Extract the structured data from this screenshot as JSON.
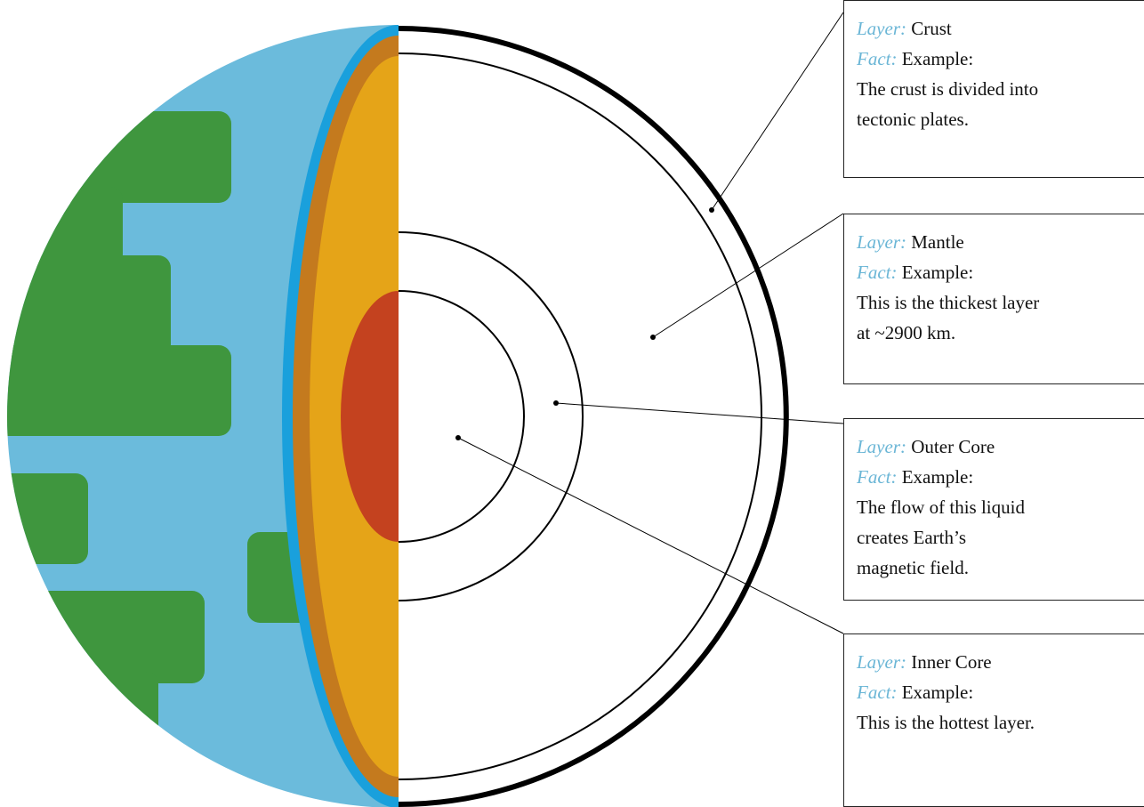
{
  "layers": [
    {
      "layer_label": "Layer:",
      "name": "Crust",
      "fact_label": "Fact:",
      "fact_intro": "Example:",
      "fact_lines": [
        "The crust is divided into",
        "tectonic plates."
      ]
    },
    {
      "layer_label": "Layer:",
      "name": "Mantle",
      "fact_label": "Fact:",
      "fact_intro": "Example:",
      "fact_lines": [
        "This is the thickest layer",
        "at ~2900 km."
      ]
    },
    {
      "layer_label": "Layer:",
      "name": "Outer Core",
      "fact_label": "Fact:",
      "fact_intro": "Example:",
      "fact_lines": [
        "The flow of this liquid",
        "creates Earth’s",
        "magnetic field."
      ]
    },
    {
      "layer_label": "Layer:",
      "name": "Inner Core",
      "fact_label": "Fact:",
      "fact_intro": "Example:",
      "fact_lines": [
        "This is the hottest layer."
      ]
    }
  ]
}
